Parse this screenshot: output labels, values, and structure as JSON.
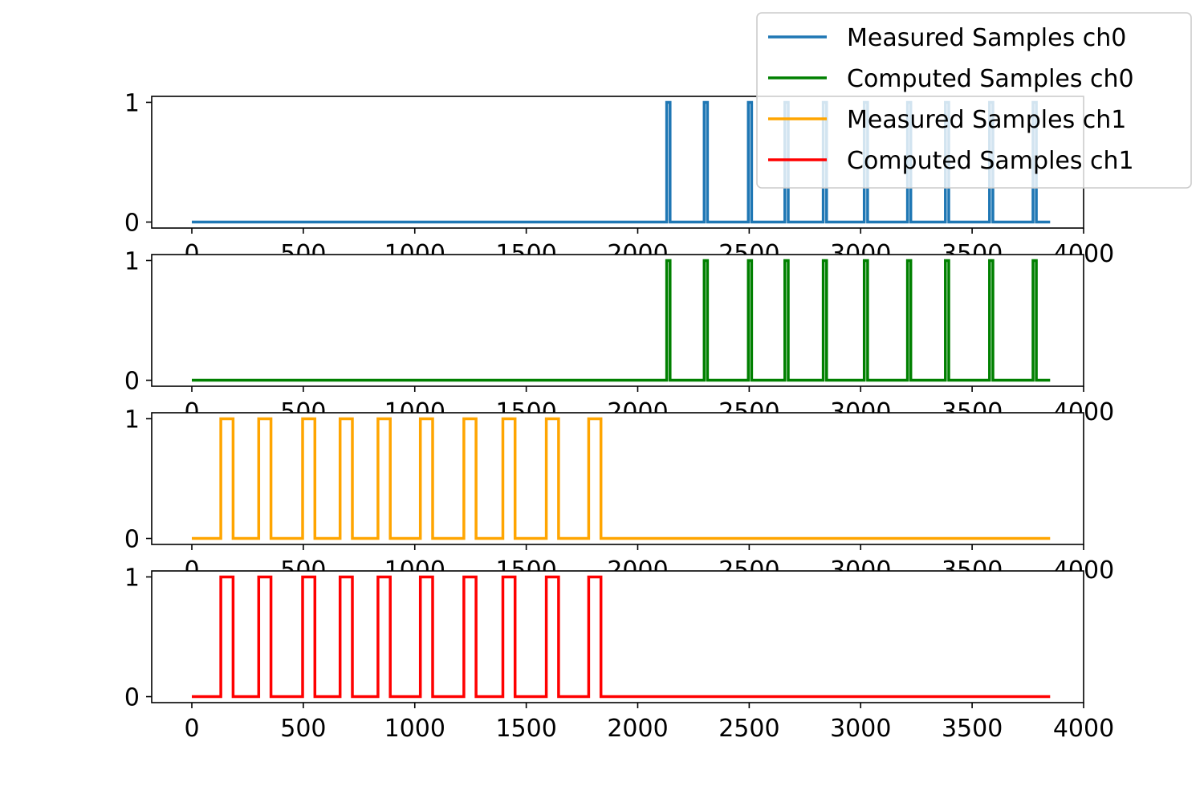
{
  "chart_data": [
    {
      "type": "line",
      "xlim": [
        -180,
        4000
      ],
      "ylim": [
        -0.05,
        1.05
      ],
      "x_ticks": [
        0,
        500,
        1000,
        1500,
        2000,
        2500,
        3000,
        3500,
        4000
      ],
      "y_ticks": [
        0,
        1
      ],
      "grid": false,
      "series": [
        {
          "name": "Measured Samples ch0",
          "color": "#1f77b4",
          "x_start": 0,
          "x_end": 3850,
          "pulses": [
            [
              2130,
              2145
            ],
            [
              2298,
              2313
            ],
            [
              2496,
              2511
            ],
            [
              2660,
              2675
            ],
            [
              2832,
              2847
            ],
            [
              3016,
              3031
            ],
            [
              3210,
              3225
            ],
            [
              3380,
              3395
            ],
            [
              3578,
              3593
            ],
            [
              3773,
              3788
            ]
          ]
        }
      ]
    },
    {
      "type": "line",
      "xlim": [
        -180,
        4000
      ],
      "ylim": [
        -0.05,
        1.05
      ],
      "x_ticks": [
        0,
        500,
        1000,
        1500,
        2000,
        2500,
        3000,
        3500,
        4000
      ],
      "y_ticks": [
        0,
        1
      ],
      "grid": false,
      "series": [
        {
          "name": "Computed Samples ch0",
          "color": "#008000",
          "x_start": 0,
          "x_end": 3850,
          "pulses": [
            [
              2130,
              2145
            ],
            [
              2298,
              2313
            ],
            [
              2496,
              2511
            ],
            [
              2660,
              2675
            ],
            [
              2832,
              2847
            ],
            [
              3016,
              3031
            ],
            [
              3210,
              3225
            ],
            [
              3380,
              3395
            ],
            [
              3578,
              3593
            ],
            [
              3773,
              3788
            ]
          ]
        }
      ]
    },
    {
      "type": "line",
      "xlim": [
        -180,
        4000
      ],
      "ylim": [
        -0.05,
        1.05
      ],
      "x_ticks": [
        0,
        500,
        1000,
        1500,
        2000,
        2500,
        3000,
        3500,
        4000
      ],
      "y_ticks": [
        0,
        1
      ],
      "grid": false,
      "series": [
        {
          "name": "Measured Samples ch1",
          "color": "#ffa500",
          "x_start": 0,
          "x_end": 3850,
          "pulses": [
            [
              130,
              185
            ],
            [
              300,
              355
            ],
            [
              497,
              552
            ],
            [
              665,
              720
            ],
            [
              835,
              890
            ],
            [
              1025,
              1080
            ],
            [
              1220,
              1275
            ],
            [
              1395,
              1450
            ],
            [
              1590,
              1645
            ],
            [
              1780,
              1835
            ]
          ]
        }
      ]
    },
    {
      "type": "line",
      "xlim": [
        -180,
        4000
      ],
      "ylim": [
        -0.05,
        1.05
      ],
      "x_ticks": [
        0,
        500,
        1000,
        1500,
        2000,
        2500,
        3000,
        3500,
        4000
      ],
      "y_ticks": [
        0,
        1
      ],
      "grid": false,
      "series": [
        {
          "name": "Computed Samples ch1",
          "color": "#ff0000",
          "x_start": 0,
          "x_end": 3850,
          "pulses": [
            [
              130,
              185
            ],
            [
              300,
              355
            ],
            [
              497,
              552
            ],
            [
              665,
              720
            ],
            [
              835,
              890
            ],
            [
              1025,
              1080
            ],
            [
              1220,
              1275
            ],
            [
              1395,
              1450
            ],
            [
              1590,
              1645
            ],
            [
              1780,
              1835
            ]
          ]
        }
      ]
    }
  ],
  "legend": {
    "placement": "upper right, outside axes",
    "entries": [
      {
        "label": "Measured Samples ch0",
        "color": "#1f77b4"
      },
      {
        "label": "Computed Samples ch0",
        "color": "#008000"
      },
      {
        "label": "Measured Samples ch1",
        "color": "#ffa500"
      },
      {
        "label": "Computed Samples ch1",
        "color": "#ff0000"
      }
    ]
  }
}
